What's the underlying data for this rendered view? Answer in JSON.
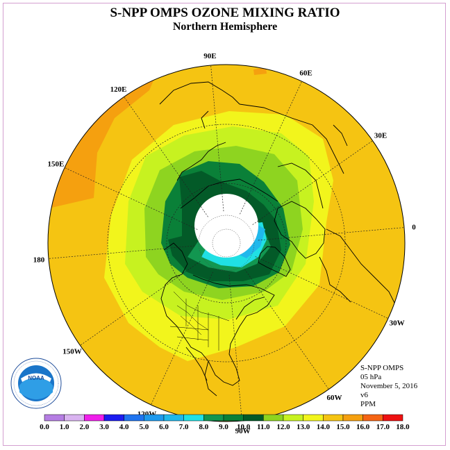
{
  "title": "S-NPP OMPS OZONE MIXING RATIO",
  "subtitle": "Northern Hemisphere",
  "longitude_labels": [
    {
      "text": "90E",
      "lon": 90
    },
    {
      "text": "60E",
      "lon": 60
    },
    {
      "text": "30E",
      "lon": 30
    },
    {
      "text": "0",
      "lon": 0
    },
    {
      "text": "30W",
      "lon": -30
    },
    {
      "text": "60W",
      "lon": -60
    },
    {
      "text": "90W",
      "lon": -90
    },
    {
      "text": "120W",
      "lon": -120
    },
    {
      "text": "150W",
      "lon": -150
    },
    {
      "text": "180",
      "lon": 180
    },
    {
      "text": "150E",
      "lon": 150
    },
    {
      "text": "120E",
      "lon": 120
    }
  ],
  "info": {
    "instrument": "S-NPP OMPS",
    "level": "05 hPa",
    "date": "November 5, 2016",
    "version": "v6",
    "units": "PPM"
  },
  "logo": {
    "text": "NOAA",
    "ring_text": "NATIONAL OCEANIC AND ATMOSPHERIC ADMINISTRATION · U.S. DEPARTMENT OF COMMERCE"
  },
  "colorbar": {
    "ticks": [
      "0.0",
      "1.0",
      "2.0",
      "3.0",
      "4.0",
      "5.0",
      "6.0",
      "7.0",
      "8.0",
      "9.0",
      "10.0",
      "11.0",
      "12.0",
      "13.0",
      "14.0",
      "15.0",
      "16.0",
      "17.0",
      "18.0"
    ],
    "colors": [
      "#b57ee3",
      "#d9b3f0",
      "#ef1fea",
      "#1c1cf0",
      "#1f74ef",
      "#1e9aee",
      "#20b8ec",
      "#20e0e4",
      "#129650",
      "#0a8038",
      "#035a28",
      "#8ed420",
      "#c7f220",
      "#f2f51c",
      "#f5c412",
      "#f5a00f",
      "#f56414",
      "#ee1111",
      "#7a5634"
    ]
  },
  "map": {
    "ocean_color": "#f5b81a",
    "polar_night_color": "#ffffff"
  }
}
